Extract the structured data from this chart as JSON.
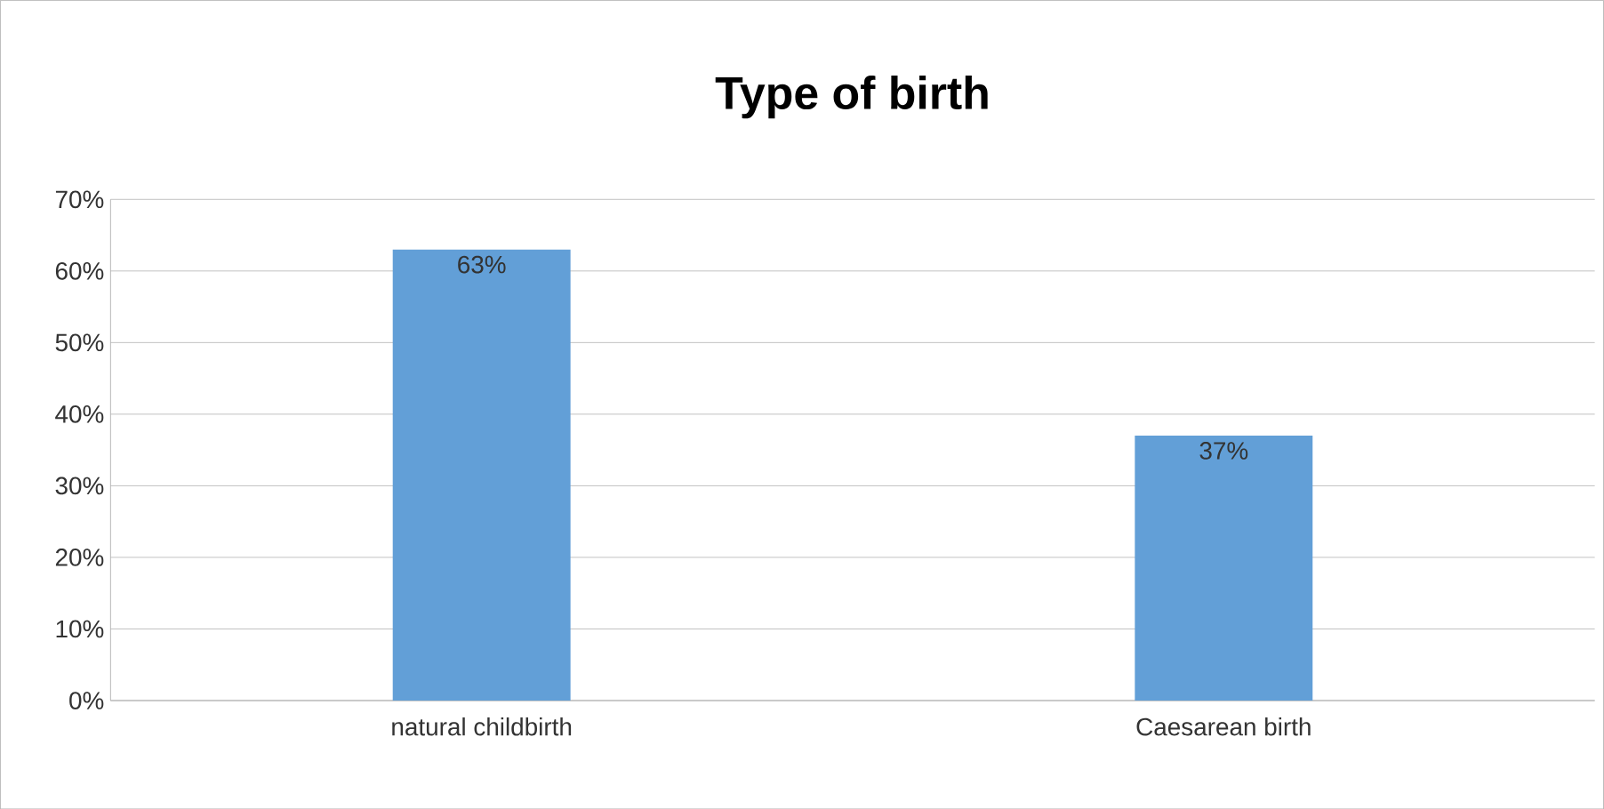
{
  "chart_data": {
    "type": "bar",
    "title": "Type of birth",
    "categories": [
      "natural childbirth",
      "Caesarean birth"
    ],
    "values": [
      63,
      37
    ],
    "value_labels": [
      "63%",
      "37%"
    ],
    "color": "#629fd7",
    "ylim": [
      0,
      70
    ],
    "yticks": [
      {
        "value": 0,
        "label": "0%"
      },
      {
        "value": 10,
        "label": "10%"
      },
      {
        "value": 20,
        "label": "20%"
      },
      {
        "value": 30,
        "label": "30%"
      },
      {
        "value": 40,
        "label": "40%"
      },
      {
        "value": 50,
        "label": "50%"
      },
      {
        "value": 60,
        "label": "60%"
      },
      {
        "value": 70,
        "label": "70%"
      }
    ],
    "grid": "y"
  }
}
